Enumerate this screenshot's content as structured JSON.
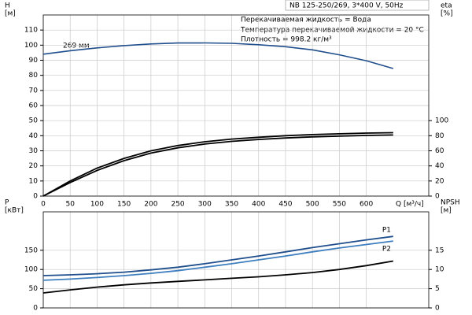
{
  "chart_data": [
    {
      "type": "line",
      "title": "NB 125-250/269, 3*400 V, 50Hz",
      "annotations": [
        "Перекачиваемая жидкость = Вода",
        "Температура перекачиваемой жидкости = 20 °C",
        "Плотность = 998.2 кг/м³"
      ],
      "curve_label": "269 мм",
      "ylabel": [
        "H",
        "[м]"
      ],
      "y2label": [
        "eta",
        "[%]"
      ],
      "xlabel": "Q [м³/ч]",
      "x": [
        0,
        50,
        100,
        150,
        200,
        250,
        300,
        350,
        400,
        450,
        500,
        550,
        600,
        650
      ],
      "xlim": [
        0,
        716
      ],
      "xticks": [
        0,
        50,
        100,
        150,
        200,
        250,
        300,
        350,
        400,
        450,
        500,
        550,
        600
      ],
      "ylim": [
        0,
        120
      ],
      "yticks": [
        0,
        10,
        20,
        30,
        40,
        50,
        60,
        70,
        80,
        90,
        100,
        110
      ],
      "y2lim": [
        0,
        240
      ],
      "y2ticks": [
        0,
        20,
        40,
        60,
        80,
        100
      ],
      "grid": true,
      "series": [
        {
          "color": "#1f4e8c",
          "values": [
            94,
            96.3,
            98.2,
            99.7,
            100.8,
            101.4,
            101.5,
            101.2,
            100.3,
            99,
            96.9,
            93.6,
            89.7,
            84.5
          ]
        },
        {
          "color": "#000000",
          "axis": "y2",
          "values": [
            0,
            20,
            37,
            50,
            60,
            67,
            72,
            75.5,
            78,
            80,
            81.5,
            82.5,
            83.5,
            84
          ]
        },
        {
          "color": "#000000",
          "axis": "y2",
          "values": [
            0,
            18,
            34,
            47,
            57,
            64,
            69,
            72.5,
            75,
            77,
            78.5,
            79.5,
            80.3,
            81
          ]
        }
      ]
    },
    {
      "type": "line",
      "ylabel": [
        "P",
        "[кВт]"
      ],
      "y2label": [
        "NPSH",
        "[м]"
      ],
      "x": [
        0,
        50,
        100,
        150,
        200,
        250,
        300,
        350,
        400,
        450,
        500,
        550,
        600,
        650
      ],
      "xlim": [
        0,
        716
      ],
      "xticks": [
        0,
        50,
        100,
        150,
        200,
        250,
        300,
        350,
        400,
        450,
        500,
        550,
        600
      ],
      "ylim": [
        0,
        250
      ],
      "yticks": [
        0,
        50,
        100,
        150
      ],
      "y2lim": [
        0,
        25
      ],
      "y2ticks": [
        0,
        5,
        10,
        15
      ],
      "grid": true,
      "series": [
        {
          "name": "P1",
          "color": "#1f4e8c",
          "values": [
            84,
            86,
            89,
            93,
            99,
            106,
            115,
            125,
            135,
            146,
            157,
            167,
            177,
            186
          ]
        },
        {
          "name": "P2",
          "color": "#3f7fbf",
          "values": [
            72,
            75,
            79,
            84,
            90,
            97,
            106,
            115,
            125,
            135,
            146,
            156,
            165,
            174
          ]
        },
        {
          "color": "#000000",
          "axis": "y2",
          "values": [
            3.9,
            4.7,
            5.4,
            6,
            6.5,
            6.9,
            7.3,
            7.7,
            8.1,
            8.6,
            9.2,
            10,
            11,
            12.2
          ]
        }
      ]
    }
  ]
}
